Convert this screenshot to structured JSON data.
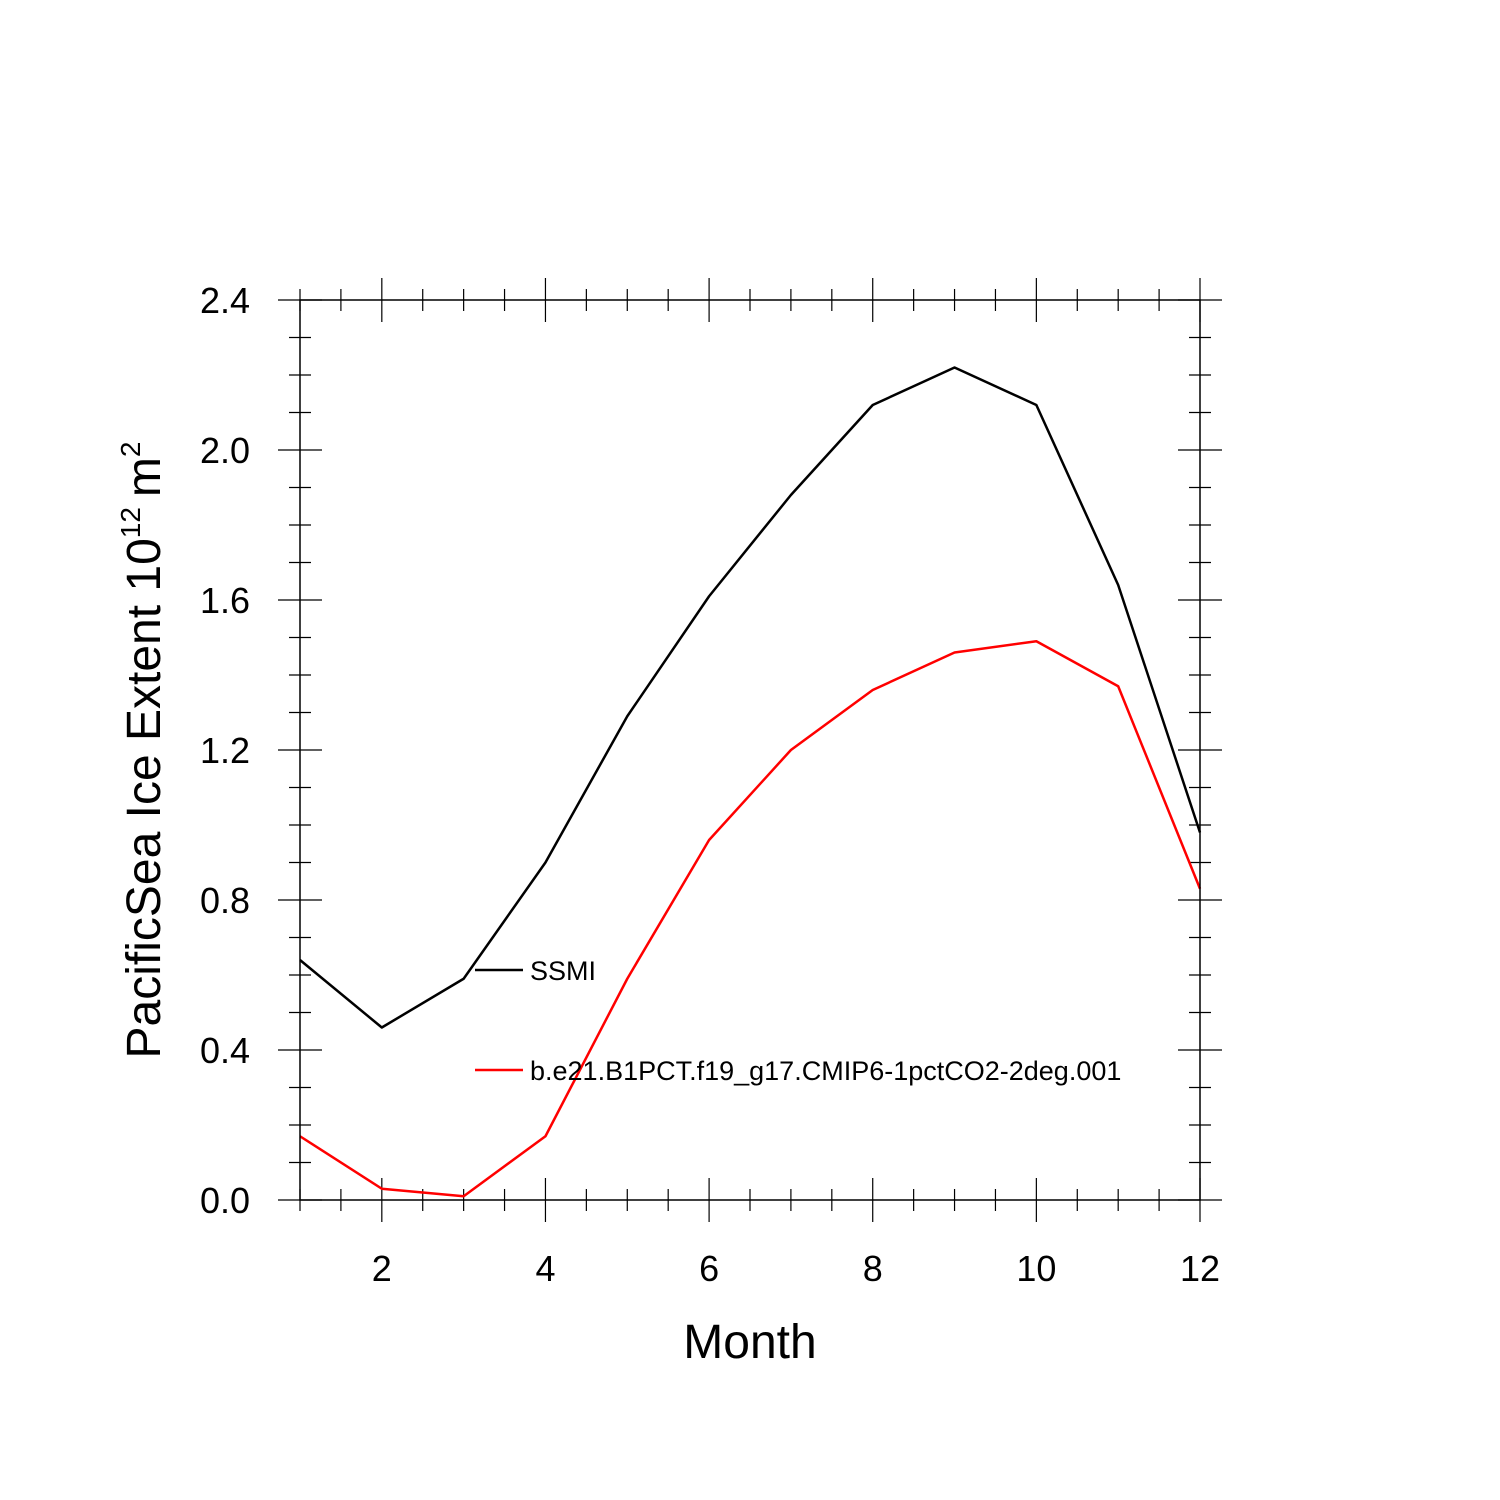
{
  "chart_data": {
    "type": "line",
    "title": "",
    "xlabel": "Month",
    "ylabel": {
      "text": "PacificSea Ice Extent 10",
      "exponent": "12",
      "unit": "m",
      "unit_exponent": "2"
    },
    "xlim": [
      1,
      12
    ],
    "ylim": [
      0,
      2.4
    ],
    "x_ticks": [
      2,
      4,
      6,
      8,
      10,
      12
    ],
    "x_tick_labels": [
      "2",
      "4",
      "6",
      "8",
      "10",
      "12"
    ],
    "y_ticks": [
      0,
      0.4,
      0.8,
      1.2,
      1.6,
      2.0,
      2.4
    ],
    "y_tick_labels": [
      "0.0",
      "0.4",
      "0.8",
      "1.2",
      "1.6",
      "2.0",
      "2.4"
    ],
    "grid": false,
    "legend_position": "inside-lower-center",
    "x": [
      1,
      2,
      3,
      4,
      5,
      6,
      7,
      8,
      9,
      10,
      11,
      12
    ],
    "series": [
      {
        "name": "SSMI",
        "color": "#000000",
        "values": [
          0.64,
          0.46,
          0.59,
          0.9,
          1.29,
          1.61,
          1.88,
          2.12,
          2.22,
          2.12,
          1.64,
          0.98
        ]
      },
      {
        "name": "b.e21.B1PCT.f19_g17.CMIP6-1pctCO2-2deg.001",
        "color": "#ff0000",
        "values": [
          0.17,
          0.03,
          0.01,
          0.17,
          0.59,
          0.96,
          1.2,
          1.36,
          1.46,
          1.49,
          1.37,
          0.83
        ]
      }
    ]
  }
}
